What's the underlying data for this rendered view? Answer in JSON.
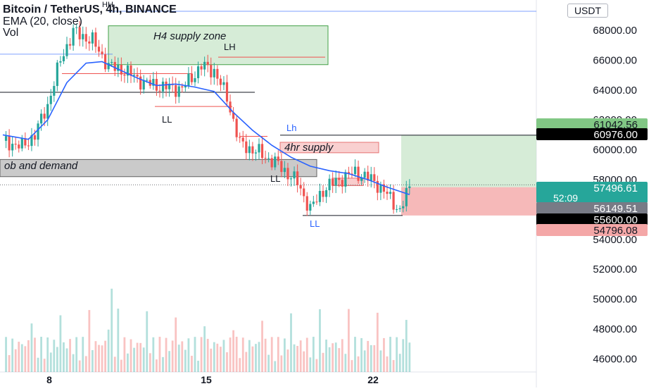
{
  "header": {
    "title": "Bitcoin / TetherUS, 4h, BINANCE",
    "indicator": "EMA (20, close)",
    "volume_label": "Vol",
    "currency": "USDT"
  },
  "colors": {
    "up": "#26a69a",
    "down": "#ef5350",
    "ema": "#2962ff",
    "supply_zone": "#c8e6c9",
    "demand_zone": "#9e9e9e",
    "four_hr_supply": "#f8c8c8",
    "target_zone": "#c8e6c9",
    "stop_zone": "#f4a7a7"
  },
  "chart_data": {
    "type": "candlestick",
    "title": "Bitcoin / TetherUS, 4h, BINANCE",
    "ylim": [
      45800,
      69000
    ],
    "y_ticks": [
      "68000.00",
      "66000.00",
      "64000.00",
      "62000.00",
      "60000.00",
      "58000.00",
      "56000.00",
      "54000.00",
      "52000.00",
      "50000.00",
      "48000.00",
      "46000.00"
    ],
    "x_ticks": [
      "8",
      "15",
      "22"
    ],
    "grid": false,
    "ema_label": "EMA (20, close)",
    "volume_label": "Vol",
    "ema": [
      {
        "i": 0,
        "v": 61000
      },
      {
        "i": 8,
        "v": 60700
      },
      {
        "i": 14,
        "v": 62000
      },
      {
        "i": 20,
        "v": 64500
      },
      {
        "i": 26,
        "v": 65800
      },
      {
        "i": 31,
        "v": 65900
      },
      {
        "i": 36,
        "v": 65400
      },
      {
        "i": 42,
        "v": 64800
      },
      {
        "i": 48,
        "v": 64300
      },
      {
        "i": 54,
        "v": 64400
      },
      {
        "i": 60,
        "v": 64200
      },
      {
        "i": 66,
        "v": 63900
      },
      {
        "i": 72,
        "v": 62500
      },
      {
        "i": 78,
        "v": 61300
      },
      {
        "i": 84,
        "v": 60300
      },
      {
        "i": 90,
        "v": 59500
      },
      {
        "i": 96,
        "v": 58900
      },
      {
        "i": 102,
        "v": 58600
      },
      {
        "i": 108,
        "v": 58400
      },
      {
        "i": 114,
        "v": 58000
      },
      {
        "i": 120,
        "v": 57500
      },
      {
        "i": 127,
        "v": 57000
      }
    ],
    "price_labels": [
      {
        "label": "target",
        "value": "61042.56"
      },
      {
        "label": "entry_line",
        "value": "60976.00"
      },
      {
        "label": "current",
        "value": "57496.61",
        "sub": "52:09"
      },
      {
        "label": "ema_value",
        "value": "56149.51"
      },
      {
        "label": "level",
        "value": "55600.00"
      },
      {
        "label": "stop",
        "value": "54796.08"
      }
    ],
    "annotations": [
      {
        "text": "H4 supply zone",
        "type": "zone",
        "price_top": 68300,
        "price_bottom": 65700
      },
      {
        "text": "ob and demand",
        "type": "zone",
        "price_top": 59350,
        "price_bottom": 58200
      },
      {
        "text": "4hr supply",
        "type": "zone",
        "price_top": 60500,
        "price_bottom": 59800
      },
      {
        "text": "LH",
        "type": "label"
      },
      {
        "text": "Lh",
        "type": "label"
      },
      {
        "text": "LL",
        "type": "label"
      },
      {
        "text": "LL",
        "type": "label"
      },
      {
        "text": "LL",
        "type": "label"
      },
      {
        "text": "HH",
        "type": "label"
      }
    ],
    "position": {
      "entry": 57496.61,
      "target": 60976.0,
      "stop": 55600.0
    }
  }
}
